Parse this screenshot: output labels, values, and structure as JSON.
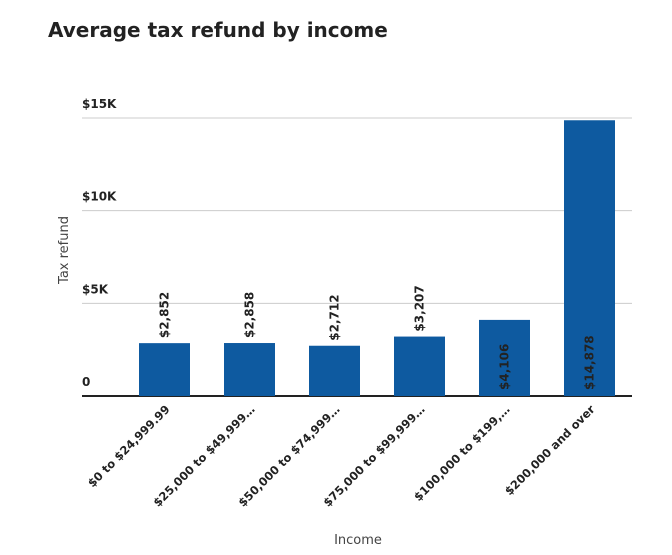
{
  "chart_data": {
    "type": "bar",
    "title": "Average tax refund by income",
    "x_label": "Income",
    "y_label": "Tax refund",
    "categories": [
      "$0 to $24,999.99",
      "$25,000 to $49,999…",
      "$50,000 to $74,999…",
      "$75,000 to $99,999…",
      "$100,000 to $199,…",
      "$200,000 and over"
    ],
    "values": [
      2852,
      2858,
      2712,
      3207,
      4106,
      14878
    ],
    "value_labels": [
      "$2,852",
      "$2,858",
      "$2,712",
      "$3,207",
      "$4,106",
      "$14,878"
    ],
    "color": "#0e5aa0",
    "ylim": [
      0,
      15000
    ],
    "yticks": [
      0,
      {
        "value": 5000,
        "label": "$5K"
      },
      {
        "value": 10000,
        "label": "$10K"
      },
      {
        "value": 15000,
        "label": "$15K"
      }
    ],
    "grid": true
  }
}
